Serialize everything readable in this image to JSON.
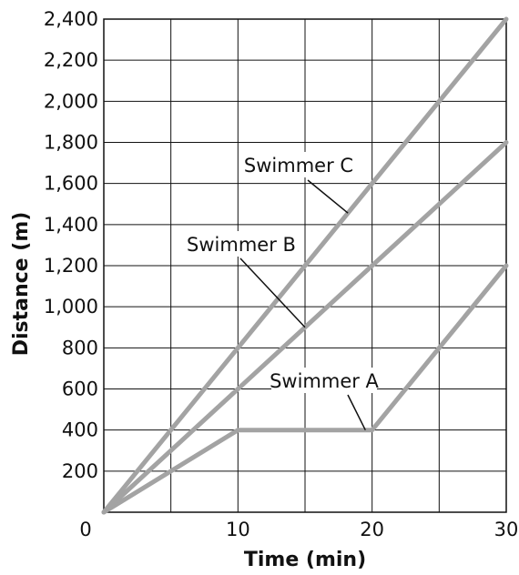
{
  "chart_data": {
    "type": "line",
    "xlabel": "Time (min)",
    "ylabel": "Distance (m)",
    "xlim": [
      0,
      30
    ],
    "ylim": [
      0,
      2400
    ],
    "x_ticks": [
      0,
      10,
      20,
      30
    ],
    "x_tick_labels": [
      "0",
      "10",
      "20",
      "30"
    ],
    "y_ticks": [
      200,
      400,
      600,
      800,
      1000,
      1200,
      1400,
      1600,
      1800,
      2000,
      2200,
      2400
    ],
    "y_tick_labels": [
      "200",
      "400",
      "600",
      "800",
      "1,000",
      "1,200",
      "1,400",
      "1,600",
      "1,800",
      "2,000",
      "2,200",
      "2,400"
    ],
    "grid": true,
    "series": [
      {
        "name": "Swimmer A",
        "x": [
          0,
          10,
          20,
          30
        ],
        "y": [
          0,
          400,
          400,
          1200
        ]
      },
      {
        "name": "Swimmer B",
        "x": [
          0,
          30
        ],
        "y": [
          0,
          1800
        ]
      },
      {
        "name": "Swimmer C",
        "x": [
          0,
          30
        ],
        "y": [
          0,
          2400
        ]
      }
    ],
    "annotations": [
      {
        "text": "Swimmer A",
        "series": "Swimmer A",
        "points_to": [
          19.5,
          400
        ]
      },
      {
        "text": "Swimmer B",
        "series": "Swimmer B",
        "points_to": [
          15,
          900
        ]
      },
      {
        "text": "Swimmer C",
        "series": "Swimmer C",
        "points_to": [
          18.2,
          1456
        ]
      }
    ],
    "colors": {
      "series": "#a3a3a3",
      "grid": "#111111",
      "text": "#111111"
    }
  }
}
